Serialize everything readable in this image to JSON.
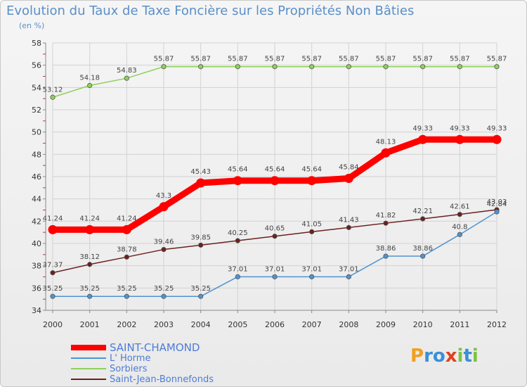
{
  "title": "Evolution du Taux de Taxe Foncière sur les Propriétés Non Bâties",
  "unit_label": "(en %)",
  "logo": {
    "text": "Proxiti",
    "letters": [
      "P",
      "r",
      "o",
      "x",
      "i",
      "t",
      "i"
    ]
  },
  "chart_data": {
    "type": "line",
    "title": "Evolution du Taux de Taxe Foncière sur les Propriétés Non Bâties",
    "ylabel": "(en %)",
    "xlabel": "",
    "categories": [
      "2000",
      "2001",
      "2002",
      "2003",
      "2004",
      "2005",
      "2006",
      "2007",
      "2008",
      "2009",
      "2010",
      "2011",
      "2012"
    ],
    "ylim": [
      34,
      58
    ],
    "yticks": [
      34,
      36,
      38,
      40,
      42,
      44,
      46,
      48,
      50,
      52,
      54,
      56,
      58
    ],
    "grid": true,
    "legend_position": "bottom-left",
    "series": [
      {
        "name": "SAINT-CHAMOND",
        "color": "#ff0000",
        "values": [
          41.24,
          41.24,
          41.24,
          43.3,
          45.43,
          45.64,
          45.64,
          45.64,
          45.84,
          48.13,
          49.33,
          49.33,
          49.33
        ],
        "labels": [
          "41.24",
          "41.24",
          "41.24",
          "43.3",
          "45.43",
          "45.64",
          "45.64",
          "45.64",
          "45.84",
          "48.13",
          "49.33",
          "49.33",
          "49.33"
        ]
      },
      {
        "name": "L' Horme",
        "color": "#4f93d0",
        "values": [
          35.25,
          35.25,
          35.25,
          35.25,
          35.25,
          37.01,
          37.01,
          37.01,
          37.01,
          38.86,
          38.86,
          40.8,
          42.84
        ],
        "labels": [
          "35.25",
          "35.25",
          "35.25",
          "35.25",
          "35.25",
          "37.01",
          "37.01",
          "37.01",
          "37.01",
          "38.86",
          "38.86",
          "40.8",
          "42.84"
        ]
      },
      {
        "name": "Sorbiers",
        "color": "#8fd05a",
        "values": [
          53.12,
          54.18,
          54.83,
          55.87,
          55.87,
          55.87,
          55.87,
          55.87,
          55.87,
          55.87,
          55.87,
          55.87,
          55.87
        ],
        "labels": [
          "53.12",
          "54.18",
          "54.83",
          "55.87",
          "55.87",
          "55.87",
          "55.87",
          "55.87",
          "55.87",
          "55.87",
          "55.87",
          "55.87",
          "55.87"
        ]
      },
      {
        "name": "Saint-Jean-Bonnefonds",
        "color": "#6b2020",
        "values": [
          37.37,
          38.12,
          38.78,
          39.46,
          39.85,
          40.25,
          40.65,
          41.05,
          41.43,
          41.82,
          42.21,
          42.61,
          43.03
        ],
        "labels": [
          "37.37",
          "38.12",
          "38.78",
          "39.46",
          "39.85",
          "40.25",
          "40.65",
          "41.05",
          "41.43",
          "41.82",
          "42.21",
          "42.61",
          "43.03"
        ]
      }
    ]
  }
}
